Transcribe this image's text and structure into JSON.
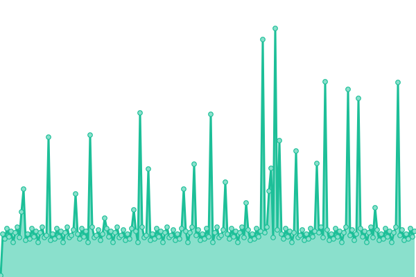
{
  "chart_data": {
    "type": "area",
    "title": "",
    "xlabel": "",
    "ylabel": "",
    "markers": true,
    "grid": false,
    "axes_visible": false,
    "ylim": [
      0,
      400
    ],
    "colors": {
      "line": "#1dbf98",
      "fill": "#8ae0cc",
      "marker_fill": "#8ae0cc",
      "marker_stroke": "#1dbf98"
    },
    "values": [
      2,
      62,
      55,
      70,
      58,
      66,
      50,
      64,
      72,
      57,
      94,
      127,
      53,
      62,
      55,
      70,
      58,
      66,
      50,
      64,
      72,
      57,
      60,
      202,
      53,
      62,
      55,
      70,
      58,
      66,
      50,
      64,
      72,
      57,
      60,
      68,
      120,
      62,
      55,
      70,
      58,
      66,
      50,
      205,
      72,
      57,
      60,
      68,
      53,
      62,
      85,
      70,
      58,
      66,
      50,
      64,
      72,
      57,
      60,
      68,
      53,
      62,
      55,
      70,
      97,
      66,
      50,
      237,
      72,
      57,
      60,
      156,
      53,
      62,
      55,
      70,
      58,
      66,
      50,
      64,
      72,
      57,
      60,
      68,
      53,
      62,
      55,
      70,
      127,
      66,
      50,
      64,
      72,
      163,
      60,
      68,
      53,
      62,
      55,
      70,
      58,
      235,
      50,
      64,
      72,
      57,
      60,
      68,
      137,
      62,
      55,
      70,
      58,
      66,
      50,
      64,
      72,
      57,
      107,
      68,
      53,
      62,
      55,
      70,
      58,
      66,
      343,
      64,
      72,
      124,
      157,
      57,
      359,
      68,
      197,
      62,
      55,
      70,
      58,
      66,
      50,
      64,
      182,
      57,
      60,
      68,
      53,
      62,
      55,
      70,
      58,
      66,
      164,
      64,
      72,
      57,
      282,
      68,
      53,
      62,
      55,
      70,
      58,
      66,
      50,
      64,
      72,
      271,
      60,
      68,
      53,
      62,
      258,
      70,
      58,
      66,
      50,
      64,
      72,
      57,
      100,
      68,
      53,
      62,
      55,
      70,
      58,
      66,
      50,
      64,
      72,
      281,
      60,
      68,
      53,
      62,
      55,
      70,
      58,
      66
    ]
  }
}
